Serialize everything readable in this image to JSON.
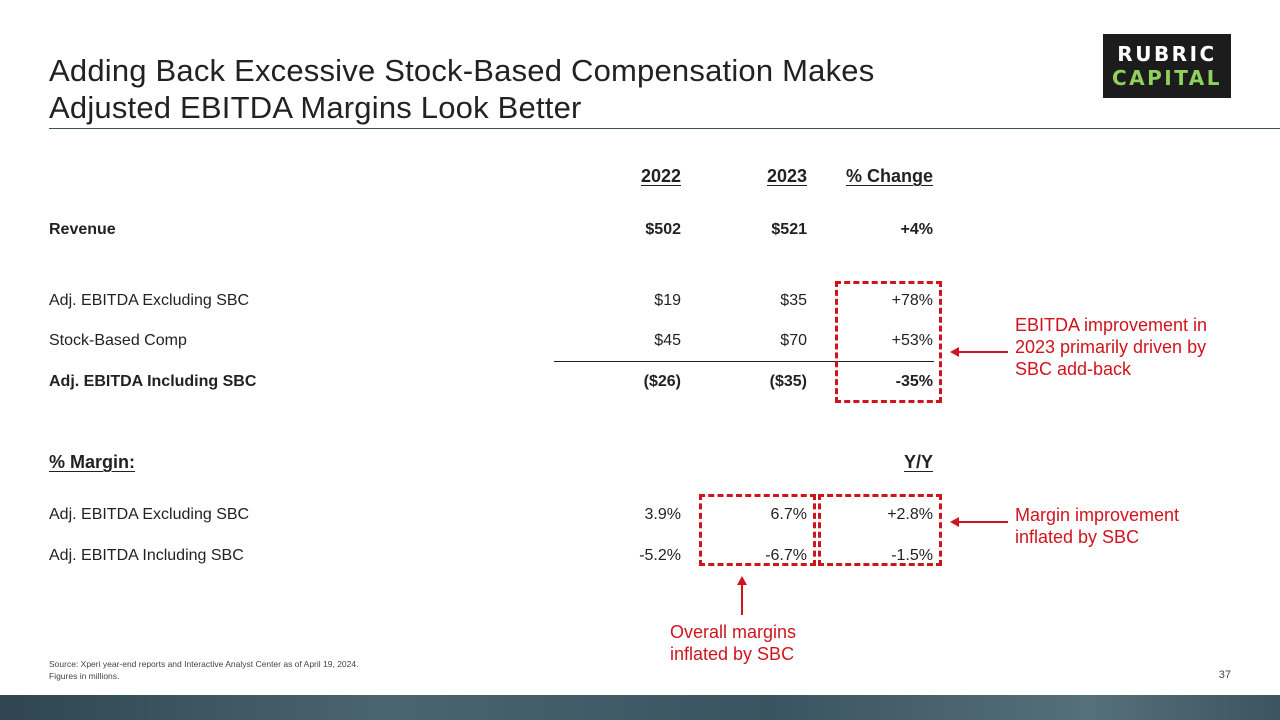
{
  "title": {
    "line1": "Adding Back Excessive Stock-Based Compensation Makes",
    "line2": "Adjusted EBITDA Margins Look Better"
  },
  "logo": {
    "line1": "RUBRIC",
    "line2": "CAPITAL"
  },
  "colors": {
    "accent_red": "#d0141d",
    "logo_green": "#8fd15c",
    "footer_band": "#3a5360"
  },
  "table": {
    "headers": {
      "y2022": "2022",
      "y2023": "2023",
      "pct_change": "% Change"
    },
    "revenue": {
      "label": "Revenue",
      "y2022": "$502",
      "y2023": "$521",
      "change": "+4%"
    },
    "adj_ex_sbc": {
      "label": "Adj. EBITDA Excluding SBC",
      "y2022": "$19",
      "y2023": "$35",
      "change": "+78%"
    },
    "sbc": {
      "label": "Stock-Based Comp",
      "y2022": "$45",
      "y2023": "$70",
      "change": "+53%"
    },
    "adj_inc_sbc": {
      "label": "Adj. EBITDA Including SBC",
      "y2022": "($26)",
      "y2023": "($35)",
      "change": "-35%"
    }
  },
  "margin": {
    "header": "% Margin:",
    "yy_header": "Y/Y",
    "ex_sbc": {
      "label": "Adj. EBITDA Excluding SBC",
      "y2022": "3.9%",
      "y2023": "6.7%",
      "yy": "+2.8%"
    },
    "inc_sbc": {
      "label": "Adj. EBITDA Including SBC",
      "y2022": "-5.2%",
      "y2023": "-6.7%",
      "yy": "-1.5%"
    }
  },
  "annotations": {
    "ebitda_note": {
      "line1": "EBITDA improvement in",
      "line2": "2023 primarily driven by",
      "line3": "SBC add-back"
    },
    "margin_note": {
      "line1": "Margin improvement",
      "line2": "inflated by SBC"
    },
    "overall_note": {
      "line1": "Overall margins",
      "line2": "inflated by SBC"
    }
  },
  "footer": {
    "source_line1": "Source: Xperi year-end reports and Interactive Analyst Center as of April 19, 2024.",
    "source_line2": "Figures in millions.",
    "page_number": "37"
  }
}
